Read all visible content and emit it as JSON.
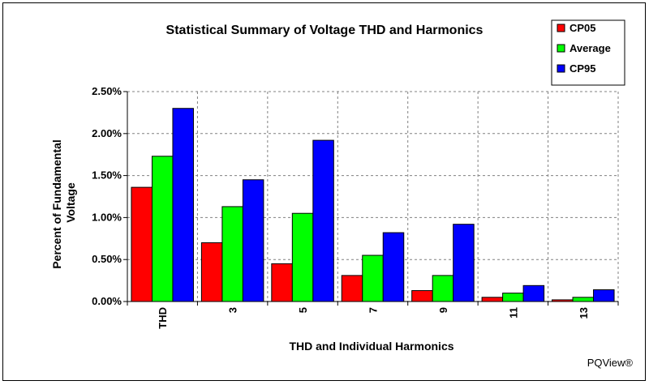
{
  "chart_data": {
    "type": "bar",
    "title": "Statistical Summary of Voltage THD and Harmonics",
    "xlabel": "THD and Individual Harmonics",
    "ylabel_lines": [
      "Percent of Fundamental",
      "Voltage"
    ],
    "categories": [
      "THD",
      "3",
      "5",
      "7",
      "9",
      "11",
      "13"
    ],
    "series": [
      {
        "name": "CP05",
        "color": "#ff0000",
        "values": [
          1.36,
          0.7,
          0.45,
          0.31,
          0.13,
          0.05,
          0.02
        ]
      },
      {
        "name": "Average",
        "color": "#00ff00",
        "values": [
          1.73,
          1.13,
          1.05,
          0.55,
          0.31,
          0.1,
          0.05
        ]
      },
      {
        "name": "CP95",
        "color": "#0000ff",
        "values": [
          2.3,
          1.45,
          1.92,
          0.82,
          0.92,
          0.19,
          0.14
        ]
      }
    ],
    "ylim": [
      0,
      2.5
    ],
    "yticks": [
      0,
      0.5,
      1.0,
      1.5,
      2.0,
      2.5
    ],
    "ytick_labels": [
      "0.00%",
      "0.50%",
      "1.00%",
      "1.50%",
      "2.00%",
      "2.50%"
    ],
    "grid": true,
    "legend_position": "top-right"
  },
  "credit": "PQView®"
}
